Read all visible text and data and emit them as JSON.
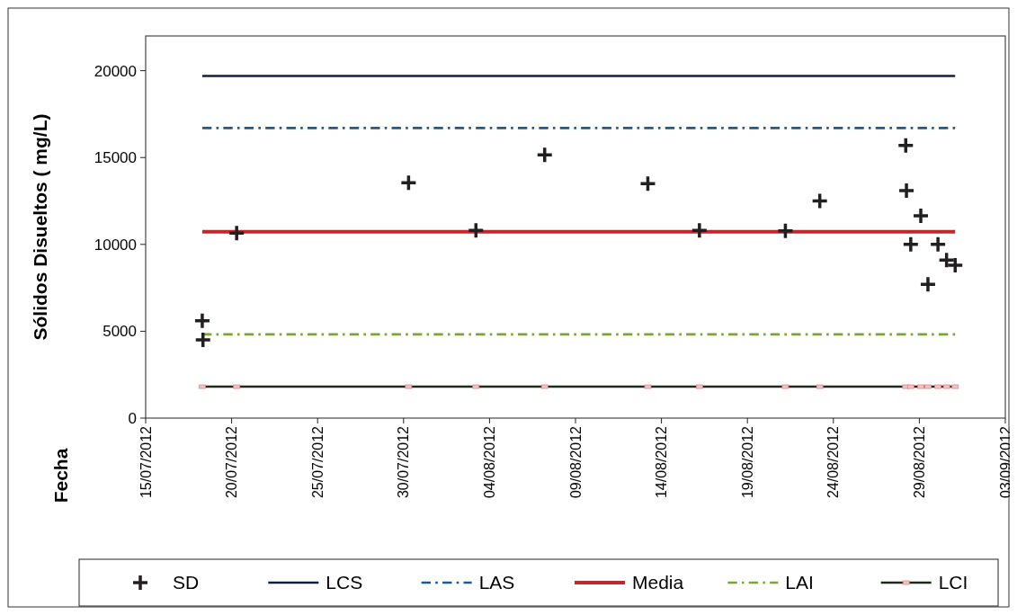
{
  "chart_data": {
    "type": "scatter",
    "ylabel": "Sólidos Disueltos ( mg/L)",
    "annotations": [
      "Fecha"
    ],
    "xlim": [
      "2012-07-15",
      "2012-09-03"
    ],
    "xticks": [
      {
        "value": "2012-07-15",
        "label": "15/07/2012"
      },
      {
        "value": "2012-07-20",
        "label": "20/07/2012"
      },
      {
        "value": "2012-07-25",
        "label": "25/07/2012"
      },
      {
        "value": "2012-07-30",
        "label": "30/07/2012"
      },
      {
        "value": "2012-08-04",
        "label": "04/08/2012"
      },
      {
        "value": "2012-08-09",
        "label": "09/08/2012"
      },
      {
        "value": "2012-08-14",
        "label": "14/08/2012"
      },
      {
        "value": "2012-08-19",
        "label": "19/08/2012"
      },
      {
        "value": "2012-08-24",
        "label": "24/08/2012"
      },
      {
        "value": "2012-08-29",
        "label": "29/08/2012"
      },
      {
        "value": "2012-09-03",
        "label": "03/09/2012"
      }
    ],
    "ylim": [
      0,
      22000
    ],
    "yticks": [
      0,
      5000,
      10000,
      15000,
      20000
    ],
    "grid": false,
    "legend": "bottom",
    "series": [
      {
        "name": "SD",
        "marker": "cross",
        "color": "#231f20",
        "x": [
          "2012-07-18T07:00",
          "2012-07-18T08:00",
          "2012-07-20T07:00",
          "2012-07-30T07:00",
          "2012-08-03T05:00",
          "2012-08-07T05:00",
          "2012-08-13T05:00",
          "2012-08-16T05:00",
          "2012-08-21T05:00",
          "2012-08-23T05:00",
          "2012-08-28T05:00",
          "2012-08-28T06:00",
          "2012-08-28T12:00",
          "2012-08-29T02:00",
          "2012-08-29T12:00",
          "2012-08-30T02:00",
          "2012-08-30T14:00",
          "2012-08-31T02:00"
        ],
        "values": [
          5600,
          4500,
          10650,
          13550,
          10800,
          15150,
          13500,
          10800,
          10780,
          12500,
          15700,
          13100,
          10000,
          11650,
          7700,
          10000,
          9100,
          8800
        ]
      },
      {
        "name": "LCS",
        "type": "line",
        "line_style": "solid",
        "color": "#0d2240",
        "x": [
          "2012-07-18T07:00",
          "2012-08-31T02:00"
        ],
        "values": [
          19700,
          19700
        ]
      },
      {
        "name": "LAS",
        "type": "line",
        "line_style": "dashed",
        "color": "#1f5a8c",
        "x": [
          "2012-07-18T07:00",
          "2012-08-31T02:00"
        ],
        "values": [
          16700,
          16700
        ]
      },
      {
        "name": "Media",
        "type": "line",
        "line_style": "solid",
        "color": "#c0282d",
        "x": [
          "2012-07-18T07:00",
          "2012-08-31T02:00"
        ],
        "values": [
          10730,
          10730
        ]
      },
      {
        "name": "LAI",
        "type": "line",
        "line_style": "dashed",
        "color": "#7aa33a",
        "x": [
          "2012-07-18T07:00",
          "2012-08-31T02:00"
        ],
        "values": [
          4820,
          4820
        ]
      },
      {
        "name": "LCI",
        "type": "line",
        "line_style": "solid",
        "marker": "square",
        "color": "#1e2a1a",
        "x": [
          "2012-07-18T07:00",
          "2012-07-20T07:00",
          "2012-07-30T07:00",
          "2012-08-03T05:00",
          "2012-08-07T05:00",
          "2012-08-13T05:00",
          "2012-08-16T05:00",
          "2012-08-21T05:00",
          "2012-08-23T05:00",
          "2012-08-28T05:00",
          "2012-08-28T12:00",
          "2012-08-29T02:00",
          "2012-08-29T12:00",
          "2012-08-30T02:00",
          "2012-08-30T14:00",
          "2012-08-31T02:00"
        ],
        "values": [
          1810,
          1810,
          1810,
          1810,
          1810,
          1810,
          1810,
          1810,
          1810,
          1810,
          1810,
          1810,
          1810,
          1810,
          1810,
          1810
        ]
      }
    ]
  }
}
